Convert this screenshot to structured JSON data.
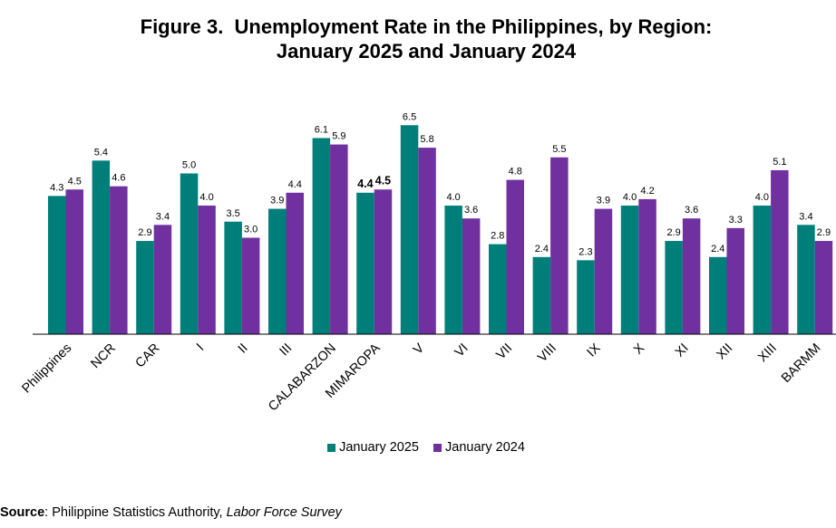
{
  "title": {
    "line1": "Figure 3.  Unemployment Rate in the Philippines, by Region:",
    "line2": "January 2025 and January 2024"
  },
  "source": {
    "label": "Source",
    "text": ": Philippine Statistics Authority, ",
    "publication": "Labor Force Survey"
  },
  "colors": {
    "january_2025": "#007F7A",
    "january_2024": "#7030A0"
  },
  "chart_data": {
    "type": "bar",
    "categories": [
      "Philippines",
      "NCR",
      "CAR",
      "I",
      "II",
      "III",
      "CALABARZON",
      "MIMAROPA",
      "V",
      "VI",
      "VII",
      "VIII",
      "IX",
      "X",
      "XI",
      "XII",
      "XIII",
      "BARMM"
    ],
    "series": [
      {
        "name": "January 2025",
        "values": [
          4.3,
          5.4,
          2.9,
          5.0,
          3.5,
          3.9,
          6.1,
          4.4,
          6.5,
          4.0,
          2.8,
          2.4,
          2.3,
          4.0,
          2.9,
          2.4,
          4.0,
          3.4
        ]
      },
      {
        "name": "January 2024",
        "values": [
          4.5,
          4.6,
          3.4,
          4.0,
          3.0,
          4.4,
          5.9,
          4.5,
          5.8,
          3.6,
          4.8,
          5.5,
          3.9,
          4.2,
          3.6,
          3.3,
          5.1,
          2.9
        ]
      }
    ],
    "highlighted_category": "MIMAROPA",
    "ylim": [
      0,
      7
    ],
    "legend_position": "bottom",
    "grid": false
  }
}
